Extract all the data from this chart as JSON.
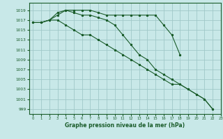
{
  "title": "Graphe pression niveau de la mer (hPa)",
  "bg_color": "#c8e8e8",
  "grid_color": "#a0c8c8",
  "line_color": "#1a5c2a",
  "xlim": [
    -0.5,
    23
  ],
  "ylim": [
    998,
    1020.5
  ],
  "yticks": [
    999,
    1001,
    1003,
    1005,
    1007,
    1009,
    1011,
    1013,
    1015,
    1017,
    1019
  ],
  "xticks": [
    0,
    1,
    2,
    3,
    4,
    5,
    6,
    7,
    8,
    9,
    10,
    11,
    12,
    13,
    14,
    15,
    16,
    17,
    18,
    19,
    20,
    21,
    22,
    23
  ],
  "s1": [
    1016.5,
    1016.5,
    1017,
    1018.5,
    1019,
    1019,
    1019,
    1019,
    1018.5,
    1018,
    1018,
    1018,
    1018,
    1018,
    1018,
    1018,
    1016,
    1014,
    1010,
    null,
    null,
    null,
    null,
    null
  ],
  "s2": [
    1016.5,
    1016.5,
    1017,
    1018,
    1019,
    1018.5,
    1018,
    1018,
    1017.5,
    1017,
    1016,
    1014,
    1012,
    1010,
    1009,
    1007,
    1006,
    1005,
    1004,
    1003,
    1002,
    1001,
    999,
    null
  ],
  "s3": [
    1016.5,
    1016.5,
    1017,
    1017,
    1016,
    1015,
    1014,
    1014,
    1013,
    1012,
    1011,
    1010,
    1009,
    1008,
    1007,
    1006,
    1005,
    1004,
    1004,
    1003,
    1002,
    1001,
    999,
    null
  ]
}
